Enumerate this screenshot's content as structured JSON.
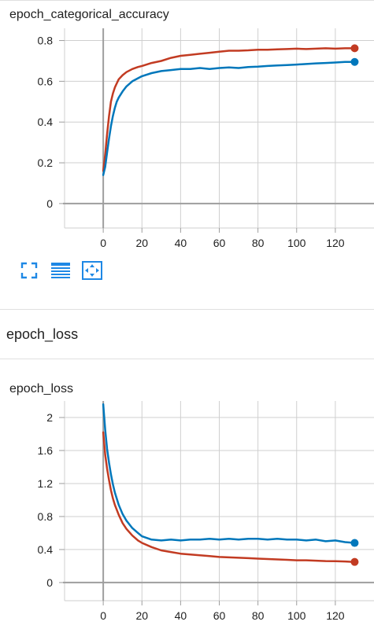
{
  "section_title": "epoch_loss",
  "toolbar": {
    "fullscreen_icon": "fullscreen-icon",
    "data_table_icon": "data-table-icon",
    "fit_domain_icon": "fit-domain-icon",
    "accent": "#1e88e5"
  },
  "colors": {
    "train": "#c23b22",
    "validation": "#0077bb",
    "axis": "#9e9e9e",
    "grid": "#cfcfcf"
  },
  "chart_data": [
    {
      "type": "line",
      "title": "epoch_categorical_accuracy",
      "xlabel": "",
      "ylabel": "",
      "xlim": [
        -20,
        140
      ],
      "ylim": [
        -0.12,
        0.86
      ],
      "xticks": [
        0,
        20,
        40,
        60,
        80,
        100,
        120
      ],
      "yticks": [
        0,
        0.2,
        0.4,
        0.6,
        0.8
      ],
      "ytick_labels": [
        "0",
        "0.2",
        "0.4",
        "0.6",
        "0.8"
      ],
      "grid": true,
      "legend": "none",
      "series": [
        {
          "color": "#c23b22",
          "x": [
            0,
            1,
            2,
            3,
            4,
            5,
            6,
            7,
            8,
            10,
            12,
            15,
            18,
            20,
            25,
            30,
            35,
            40,
            45,
            50,
            55,
            60,
            65,
            70,
            75,
            80,
            85,
            90,
            95,
            100,
            105,
            110,
            115,
            120,
            125,
            130
          ],
          "values": [
            0.16,
            0.24,
            0.34,
            0.43,
            0.5,
            0.54,
            0.57,
            0.59,
            0.61,
            0.63,
            0.645,
            0.66,
            0.67,
            0.675,
            0.69,
            0.7,
            0.715,
            0.725,
            0.73,
            0.735,
            0.74,
            0.745,
            0.75,
            0.75,
            0.752,
            0.755,
            0.755,
            0.757,
            0.758,
            0.76,
            0.758,
            0.76,
            0.762,
            0.76,
            0.762,
            0.762
          ]
        },
        {
          "color": "#0077bb",
          "x": [
            0,
            1,
            2,
            3,
            4,
            5,
            6,
            7,
            8,
            10,
            12,
            15,
            18,
            20,
            25,
            30,
            35,
            40,
            45,
            50,
            55,
            60,
            65,
            70,
            75,
            80,
            85,
            90,
            95,
            100,
            105,
            110,
            115,
            120,
            125,
            130
          ],
          "values": [
            0.14,
            0.18,
            0.25,
            0.32,
            0.38,
            0.43,
            0.47,
            0.5,
            0.52,
            0.55,
            0.575,
            0.6,
            0.615,
            0.625,
            0.64,
            0.65,
            0.655,
            0.66,
            0.66,
            0.665,
            0.66,
            0.665,
            0.668,
            0.665,
            0.67,
            0.672,
            0.675,
            0.678,
            0.68,
            0.682,
            0.685,
            0.688,
            0.69,
            0.692,
            0.695,
            0.695
          ]
        }
      ]
    },
    {
      "type": "line",
      "title": "epoch_loss",
      "xlabel": "",
      "ylabel": "",
      "xlim": [
        -20,
        140
      ],
      "ylim": [
        -0.22,
        2.2
      ],
      "xticks": [
        0,
        20,
        40,
        60,
        80,
        100,
        120
      ],
      "yticks": [
        0,
        0.4,
        0.8,
        1.2,
        1.6,
        2
      ],
      "ytick_labels": [
        "0",
        "0.4",
        "0.8",
        "1.2",
        "1.6",
        "2"
      ],
      "grid": true,
      "legend": "none",
      "series": [
        {
          "color": "#c23b22",
          "x": [
            0,
            1,
            2,
            3,
            4,
            5,
            6,
            8,
            10,
            12,
            15,
            18,
            20,
            25,
            30,
            35,
            40,
            45,
            50,
            55,
            60,
            65,
            70,
            75,
            80,
            85,
            90,
            95,
            100,
            105,
            110,
            115,
            120,
            125,
            130
          ],
          "values": [
            1.82,
            1.55,
            1.38,
            1.24,
            1.12,
            1.02,
            0.94,
            0.82,
            0.72,
            0.65,
            0.57,
            0.51,
            0.48,
            0.43,
            0.39,
            0.37,
            0.35,
            0.34,
            0.33,
            0.32,
            0.31,
            0.305,
            0.3,
            0.295,
            0.29,
            0.285,
            0.28,
            0.275,
            0.27,
            0.27,
            0.265,
            0.26,
            0.258,
            0.255,
            0.25
          ]
        },
        {
          "color": "#0077bb",
          "x": [
            0,
            1,
            2,
            3,
            4,
            5,
            6,
            8,
            10,
            12,
            15,
            18,
            20,
            25,
            30,
            35,
            40,
            45,
            50,
            55,
            60,
            65,
            70,
            75,
            80,
            85,
            90,
            95,
            100,
            105,
            110,
            115,
            120,
            125,
            130
          ],
          "values": [
            2.16,
            1.85,
            1.62,
            1.45,
            1.31,
            1.19,
            1.09,
            0.94,
            0.83,
            0.75,
            0.66,
            0.6,
            0.56,
            0.52,
            0.51,
            0.52,
            0.51,
            0.52,
            0.52,
            0.53,
            0.52,
            0.53,
            0.52,
            0.53,
            0.53,
            0.52,
            0.53,
            0.52,
            0.52,
            0.51,
            0.52,
            0.5,
            0.51,
            0.49,
            0.48
          ]
        }
      ]
    }
  ]
}
